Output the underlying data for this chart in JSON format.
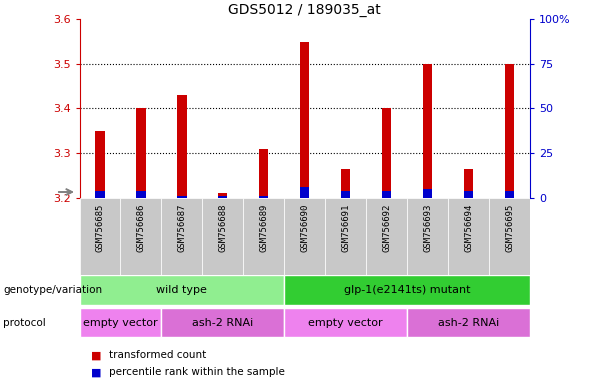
{
  "title": "GDS5012 / 189035_at",
  "samples": [
    "GSM756685",
    "GSM756686",
    "GSM756687",
    "GSM756688",
    "GSM756689",
    "GSM756690",
    "GSM756691",
    "GSM756692",
    "GSM756693",
    "GSM756694",
    "GSM756695"
  ],
  "red_values": [
    3.35,
    3.4,
    3.43,
    3.21,
    3.31,
    3.55,
    3.265,
    3.4,
    3.5,
    3.265,
    3.5
  ],
  "blue_values": [
    3.215,
    3.215,
    3.205,
    3.205,
    3.205,
    3.225,
    3.215,
    3.215,
    3.22,
    3.215,
    3.215
  ],
  "ylim_left": [
    3.2,
    3.6
  ],
  "ylim_right": [
    0,
    100
  ],
  "yticks_left": [
    3.2,
    3.3,
    3.4,
    3.5,
    3.6
  ],
  "yticks_right": [
    0,
    25,
    50,
    75,
    100
  ],
  "ytick_labels_right": [
    "0",
    "25",
    "50",
    "75",
    "100%"
  ],
  "red_color": "#cc0000",
  "blue_color": "#0000cc",
  "bg_color": "#ffffff",
  "left_axis_color": "#cc0000",
  "right_axis_color": "#0000cc",
  "tick_label_bg": "#c8c8c8",
  "genotype_groups": [
    {
      "label": "wild type",
      "start": 0,
      "end": 4,
      "color": "#90ee90"
    },
    {
      "label": "glp-1(e2141ts) mutant",
      "start": 5,
      "end": 10,
      "color": "#32cd32"
    }
  ],
  "protocol_groups": [
    {
      "label": "empty vector",
      "start": 0,
      "end": 1,
      "color": "#ee82ee"
    },
    {
      "label": "ash-2 RNAi",
      "start": 2,
      "end": 4,
      "color": "#da70d6"
    },
    {
      "label": "empty vector",
      "start": 5,
      "end": 7,
      "color": "#ee82ee"
    },
    {
      "label": "ash-2 RNAi",
      "start": 8,
      "end": 10,
      "color": "#da70d6"
    }
  ],
  "legend_items": [
    {
      "label": "transformed count",
      "color": "#cc0000"
    },
    {
      "label": "percentile rank within the sample",
      "color": "#0000cc"
    }
  ],
  "xlabel_genotype": "genotype/variation",
  "xlabel_protocol": "protocol",
  "bar_width": 0.5
}
